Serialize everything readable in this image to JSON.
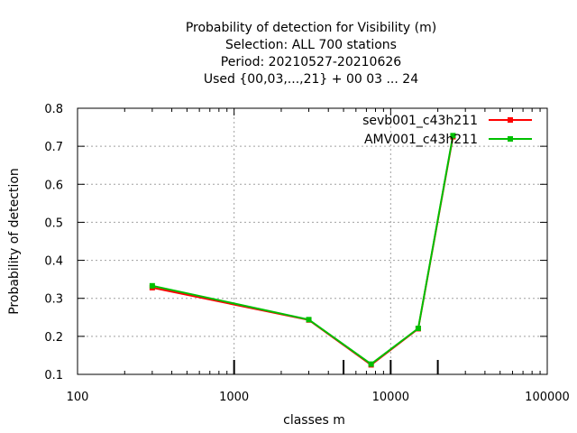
{
  "chart_data": {
    "type": "line",
    "title": [
      "Probability of detection  for Visibility (m)",
      "Selection: ALL    700 stations",
      "Period: 20210527-20210626",
      "Used {00,03,...,21} + 00 03 ... 24"
    ],
    "xlabel": "classes m",
    "ylabel": "Probability of detection",
    "xscale": "log",
    "xlim": [
      100,
      100000
    ],
    "ylim": [
      0.1,
      0.8
    ],
    "xticks": [
      {
        "value": 100,
        "label": "100"
      },
      {
        "value": 1000,
        "label": "1000"
      },
      {
        "value": 10000,
        "label": "10000"
      },
      {
        "value": 100000,
        "label": "100000"
      }
    ],
    "yticks": [
      {
        "value": 0.1,
        "label": "0.1"
      },
      {
        "value": 0.2,
        "label": "0.2"
      },
      {
        "value": 0.3,
        "label": "0.3"
      },
      {
        "value": 0.4,
        "label": "0.4"
      },
      {
        "value": 0.5,
        "label": "0.5"
      },
      {
        "value": 0.6,
        "label": "0.6"
      },
      {
        "value": 0.7,
        "label": "0.7"
      },
      {
        "value": 0.8,
        "label": "0.8"
      }
    ],
    "class_boundaries": [
      1000,
      5000,
      10000,
      20000
    ],
    "grid": true,
    "legend_position": "top-right",
    "series": [
      {
        "name": "sevb001_c43h211",
        "color": "#ff0000",
        "x": [
          300,
          3000,
          7500,
          15000,
          25000
        ],
        "y": [
          0.328,
          0.243,
          0.125,
          0.22,
          0.725
        ]
      },
      {
        "name": "AMV001_c43h211",
        "color": "#00c000",
        "x": [
          300,
          3000,
          7500,
          15000,
          25000
        ],
        "y": [
          0.333,
          0.244,
          0.127,
          0.221,
          0.728
        ]
      }
    ]
  }
}
